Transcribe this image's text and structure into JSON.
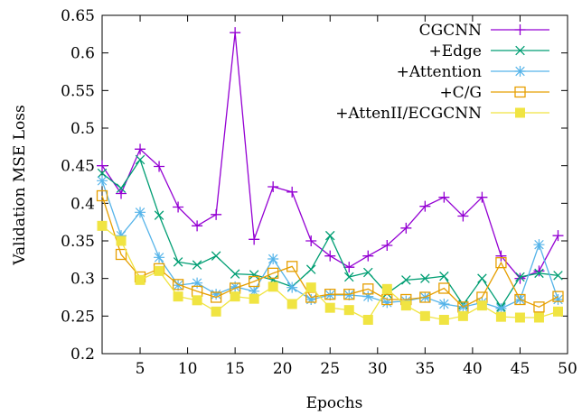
{
  "chart_data": {
    "type": "line",
    "title": "",
    "xlabel": "Epochs",
    "ylabel": "Validation MSE Loss",
    "xlim": [
      1,
      50
    ],
    "ylim": [
      0.2,
      0.65
    ],
    "xticks": [
      5,
      10,
      15,
      20,
      25,
      30,
      35,
      40,
      45,
      50
    ],
    "yticks": [
      0.2,
      0.25,
      0.3,
      0.35,
      0.4,
      0.45,
      0.5,
      0.55,
      0.6,
      0.65
    ],
    "xtick_labels": [
      "5",
      "10",
      "15",
      "20",
      "25",
      "30",
      "35",
      "40",
      "45",
      "50"
    ],
    "ytick_labels": [
      "0.2",
      "0.25",
      "0.3",
      "0.35",
      "0.4",
      "0.45",
      "0.5",
      "0.55",
      "0.6",
      "0.65"
    ],
    "grid": false,
    "legend_position": "top-right",
    "x": [
      1,
      3,
      5,
      7,
      9,
      11,
      13,
      15,
      17,
      19,
      21,
      23,
      25,
      27,
      29,
      31,
      33,
      35,
      37,
      39,
      41,
      43,
      45,
      47,
      49
    ],
    "series": [
      {
        "name": "CGCNN",
        "color": "#9400d3",
        "marker": "plus",
        "values": [
          0.45,
          0.413,
          0.472,
          0.449,
          0.395,
          0.37,
          0.385,
          0.627,
          0.352,
          0.422,
          0.415,
          0.35,
          0.33,
          0.315,
          0.33,
          0.344,
          0.367,
          0.396,
          0.408,
          0.383,
          0.408,
          0.33,
          0.3,
          0.31,
          0.357
        ]
      },
      {
        "name": "+Edge",
        "color": "#009e73",
        "marker": "cross",
        "values": [
          0.44,
          0.42,
          0.458,
          0.384,
          0.322,
          0.318,
          0.33,
          0.306,
          0.305,
          0.298,
          0.289,
          0.312,
          0.357,
          0.302,
          0.308,
          0.28,
          0.298,
          0.3,
          0.303,
          0.265,
          0.3,
          0.262,
          0.302,
          0.307,
          0.304
        ]
      },
      {
        "name": "+Attention",
        "color": "#56b4e9",
        "marker": "asterisk",
        "values": [
          0.43,
          0.357,
          0.388,
          0.328,
          0.291,
          0.294,
          0.279,
          0.289,
          0.283,
          0.326,
          0.288,
          0.272,
          0.278,
          0.278,
          0.276,
          0.268,
          0.27,
          0.275,
          0.266,
          0.262,
          0.268,
          0.26,
          0.272,
          0.345,
          0.272
        ]
      },
      {
        "name": "+C/G",
        "color": "#e69f00",
        "marker": "open-square",
        "values": [
          0.41,
          0.332,
          0.302,
          0.313,
          0.292,
          0.283,
          0.275,
          0.287,
          0.296,
          0.307,
          0.316,
          0.275,
          0.279,
          0.279,
          0.286,
          0.272,
          0.272,
          0.275,
          0.287,
          0.262,
          0.275,
          0.321,
          0.272,
          0.262,
          0.276
        ]
      },
      {
        "name": "+AttenII/ECGCNN",
        "color": "#f0e442",
        "marker": "filled-square",
        "values": [
          0.37,
          0.35,
          0.298,
          0.31,
          0.276,
          0.271,
          0.256,
          0.276,
          0.273,
          0.289,
          0.266,
          0.288,
          0.261,
          0.258,
          0.245,
          0.286,
          0.264,
          0.25,
          0.245,
          0.25,
          0.264,
          0.249,
          0.248,
          0.248,
          0.256
        ]
      }
    ]
  }
}
